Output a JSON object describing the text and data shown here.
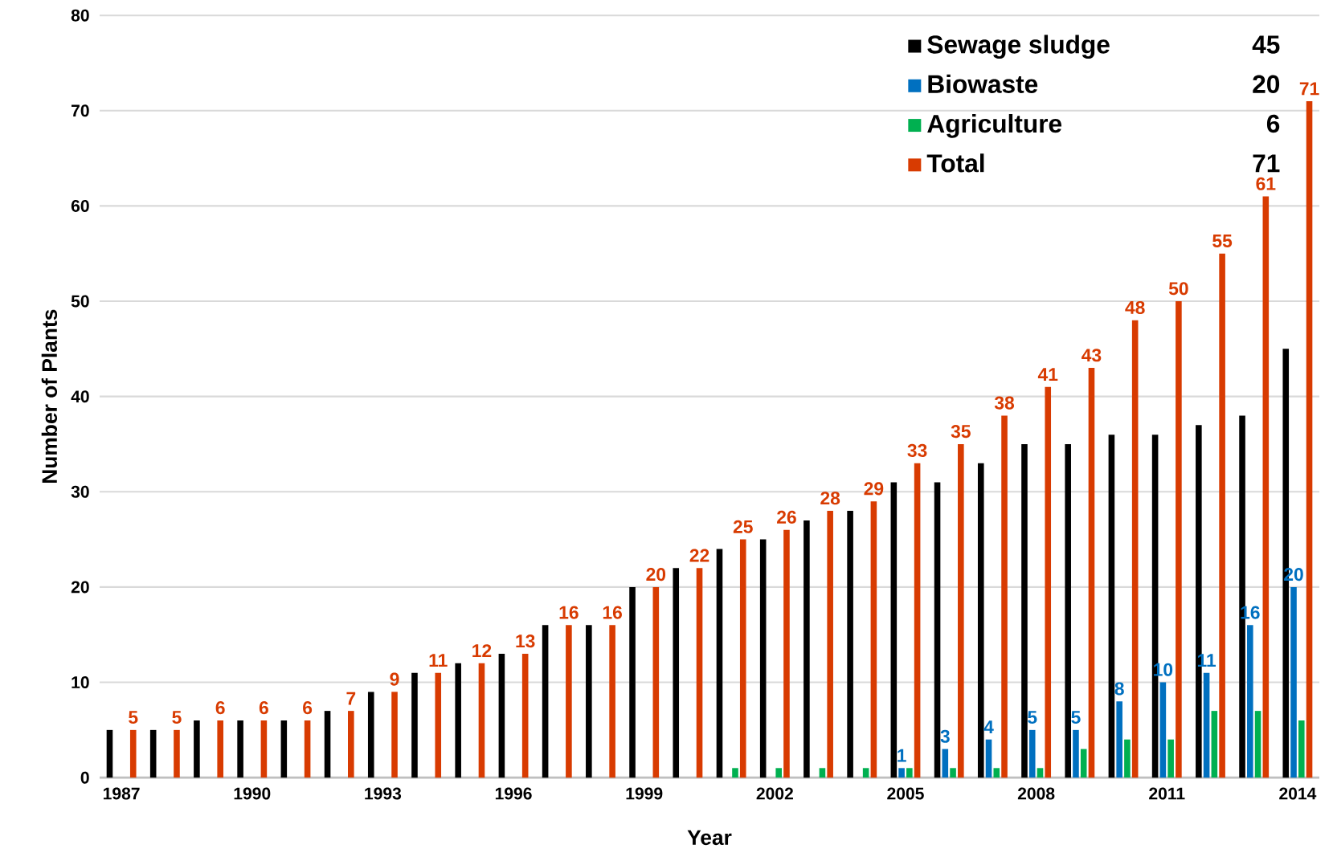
{
  "chart_data": {
    "type": "bar",
    "xlabel": "Year",
    "ylabel": "Number of Plants",
    "categories": [
      "1987",
      null,
      null,
      "1990",
      null,
      null,
      "1993",
      null,
      null,
      "1996",
      null,
      null,
      "1999",
      null,
      null,
      "2002",
      null,
      null,
      "2005",
      null,
      null,
      "2008",
      null,
      null,
      "2011",
      null,
      null,
      "2014"
    ],
    "series": [
      {
        "name": "Sewage sludge",
        "color": "#000000",
        "values": [
          5,
          5,
          6,
          6,
          6,
          7,
          9,
          11,
          12,
          13,
          16,
          16,
          20,
          22,
          24,
          25,
          27,
          28,
          31,
          31,
          33,
          35,
          35,
          36,
          36,
          37,
          38,
          45
        ]
      },
      {
        "name": "Biowaste",
        "color": "#0070c0",
        "values": [
          null,
          null,
          null,
          null,
          null,
          null,
          null,
          null,
          null,
          null,
          null,
          null,
          null,
          null,
          null,
          null,
          null,
          null,
          1,
          3,
          4,
          5,
          5,
          8,
          10,
          11,
          16,
          20
        ],
        "value_labels": [
          null,
          null,
          null,
          null,
          null,
          null,
          null,
          null,
          null,
          null,
          null,
          null,
          null,
          null,
          null,
          null,
          null,
          null,
          "1",
          "3",
          "4",
          "5",
          "5",
          "8",
          "10",
          "11",
          "16",
          "20"
        ]
      },
      {
        "name": "Agriculture",
        "color": "#00b050",
        "values": [
          null,
          null,
          null,
          null,
          null,
          null,
          null,
          null,
          null,
          null,
          null,
          null,
          null,
          null,
          1,
          1,
          1,
          1,
          1,
          1,
          1,
          1,
          3,
          4,
          4,
          7,
          7,
          6
        ]
      },
      {
        "name": "Total",
        "color": "#d83b01",
        "values": [
          5,
          5,
          6,
          6,
          6,
          7,
          9,
          11,
          12,
          13,
          16,
          16,
          20,
          22,
          25,
          26,
          28,
          29,
          33,
          35,
          38,
          41,
          43,
          48,
          50,
          55,
          61,
          71
        ],
        "value_labels": [
          "5",
          "5",
          "6",
          "6",
          "6",
          "7",
          "9",
          "11",
          "12",
          "13",
          "16",
          "16",
          "20",
          "22",
          "25",
          "26",
          "28",
          "29",
          "33",
          "35",
          "38",
          "41",
          "43",
          "48",
          "50",
          "55",
          "61",
          "71"
        ]
      }
    ],
    "annotations": [
      "45",
      "20",
      "6",
      "71"
    ],
    "ylim": [
      0,
      80
    ],
    "yticks": [
      0,
      10,
      20,
      30,
      40,
      50,
      60,
      70,
      80
    ],
    "grid": "y",
    "legend": "top right"
  }
}
